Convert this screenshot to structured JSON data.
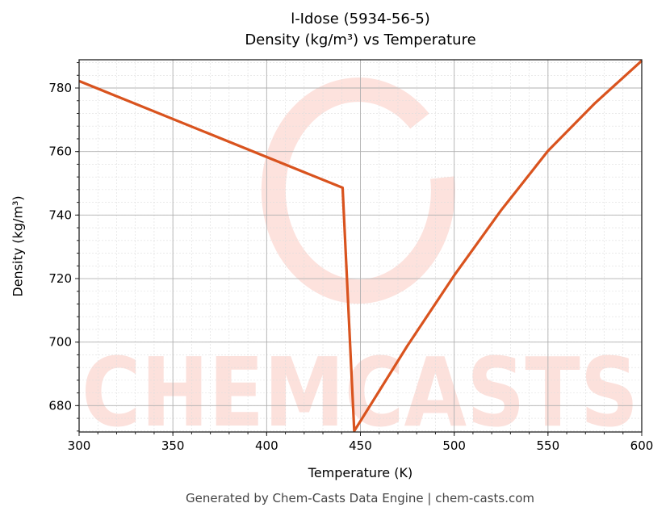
{
  "chart_data": {
    "type": "line",
    "title": "l-Idose (5934-56-5)",
    "subtitle": "Density (kg/m³) vs Temperature",
    "xlabel": "Temperature (K)",
    "ylabel": "Density (kg/m³)",
    "xlim": [
      300,
      600
    ],
    "ylim": [
      671.7,
      788.9
    ],
    "xticks": [
      300,
      350,
      400,
      450,
      500,
      550,
      600
    ],
    "yticks": [
      680,
      700,
      720,
      740,
      760,
      780
    ],
    "grid": true,
    "line_color": "#d9531e",
    "series": [
      {
        "x": [
          300,
          440.5,
          446.7,
          475,
          500,
          525,
          550,
          575,
          600
        ],
        "y": [
          782.2,
          748.6,
          672.0,
          698.8,
          721.0,
          741.5,
          760.2,
          775.2,
          788.6
        ]
      }
    ],
    "watermark": "CHEMCASTS",
    "footer": "Generated by Chem-Casts Data Engine | chem-casts.com"
  }
}
